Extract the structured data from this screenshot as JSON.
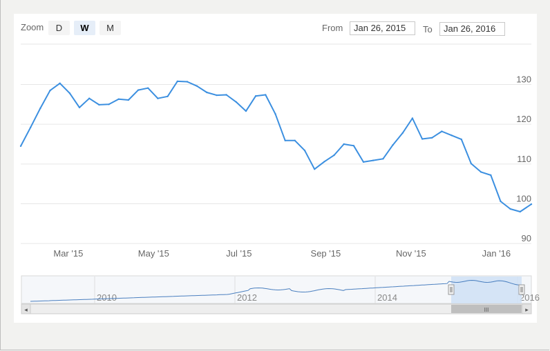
{
  "zoom": {
    "label": "Zoom",
    "options": [
      "D",
      "W",
      "M"
    ],
    "selected": "W"
  },
  "range": {
    "from_label": "From",
    "from_value": "Jan 26, 2015",
    "to_label": "To",
    "to_value": "Jan 26, 2016"
  },
  "colors": {
    "series_line": "#3b8fe0",
    "grid": "#e6e6e6",
    "navigator_fill": "#cfe1f5",
    "navigator_line": "#4a7fbf"
  },
  "chart_data": {
    "type": "line",
    "title": "",
    "xlabel": "",
    "ylabel": "",
    "ylim": [
      90,
      130
    ],
    "y_ticks": [
      90,
      100,
      110,
      120,
      130
    ],
    "x_ticks": [
      {
        "label": "Mar '15",
        "date": "2015-03-01"
      },
      {
        "label": "May '15",
        "date": "2015-05-01"
      },
      {
        "label": "Jul '15",
        "date": "2015-07-01"
      },
      {
        "label": "Sep '15",
        "date": "2015-09-01"
      },
      {
        "label": "Nov '15",
        "date": "2015-11-01"
      },
      {
        "label": "Jan '16",
        "date": "2016-01-01"
      }
    ],
    "x_range": [
      "2015-01-26",
      "2016-01-26"
    ],
    "grid": true,
    "series": [
      {
        "x": [
          "2015-01-26",
          "2015-02-02",
          "2015-02-09",
          "2015-02-16",
          "2015-02-23",
          "2015-03-02",
          "2015-03-09",
          "2015-03-16",
          "2015-03-23",
          "2015-03-30",
          "2015-04-06",
          "2015-04-13",
          "2015-04-20",
          "2015-04-27",
          "2015-05-04",
          "2015-05-11",
          "2015-05-18",
          "2015-05-25",
          "2015-06-01",
          "2015-06-08",
          "2015-06-15",
          "2015-06-22",
          "2015-06-29",
          "2015-07-06",
          "2015-07-13",
          "2015-07-20",
          "2015-07-27",
          "2015-08-03",
          "2015-08-10",
          "2015-08-17",
          "2015-08-24",
          "2015-08-31",
          "2015-09-07",
          "2015-09-14",
          "2015-09-21",
          "2015-09-28",
          "2015-10-05",
          "2015-10-12",
          "2015-10-19",
          "2015-10-26",
          "2015-11-02",
          "2015-11-09",
          "2015-11-16",
          "2015-11-23",
          "2015-11-30",
          "2015-12-07",
          "2015-12-14",
          "2015-12-21",
          "2015-12-28",
          "2016-01-04",
          "2016-01-11",
          "2016-01-18",
          "2016-01-26"
        ],
        "values": [
          114.5,
          119.2,
          124.0,
          128.5,
          130.3,
          127.8,
          124.2,
          126.5,
          124.9,
          125.0,
          126.3,
          126.1,
          128.6,
          129.1,
          126.5,
          127.0,
          130.8,
          130.7,
          129.6,
          128.0,
          127.3,
          127.4,
          125.6,
          123.3,
          127.1,
          127.4,
          122.6,
          115.9,
          115.9,
          113.4,
          108.7,
          110.6,
          112.2,
          115.0,
          114.6,
          110.5,
          110.9,
          111.3,
          114.8,
          117.8,
          121.5,
          116.3,
          116.6,
          118.2,
          117.2,
          116.2,
          110.1,
          108.0,
          107.2,
          100.6,
          98.7,
          98.0,
          99.9
        ]
      }
    ]
  },
  "navigator": {
    "year_labels": [
      "2010",
      "2012",
      "2014",
      "2016"
    ],
    "selected_range": [
      "Jan 26, 2015",
      "Jan 26, 2016"
    ],
    "scroll_left_symbol": "◂",
    "scroll_right_symbol": "▸",
    "scroll_grip_symbol": "III"
  }
}
